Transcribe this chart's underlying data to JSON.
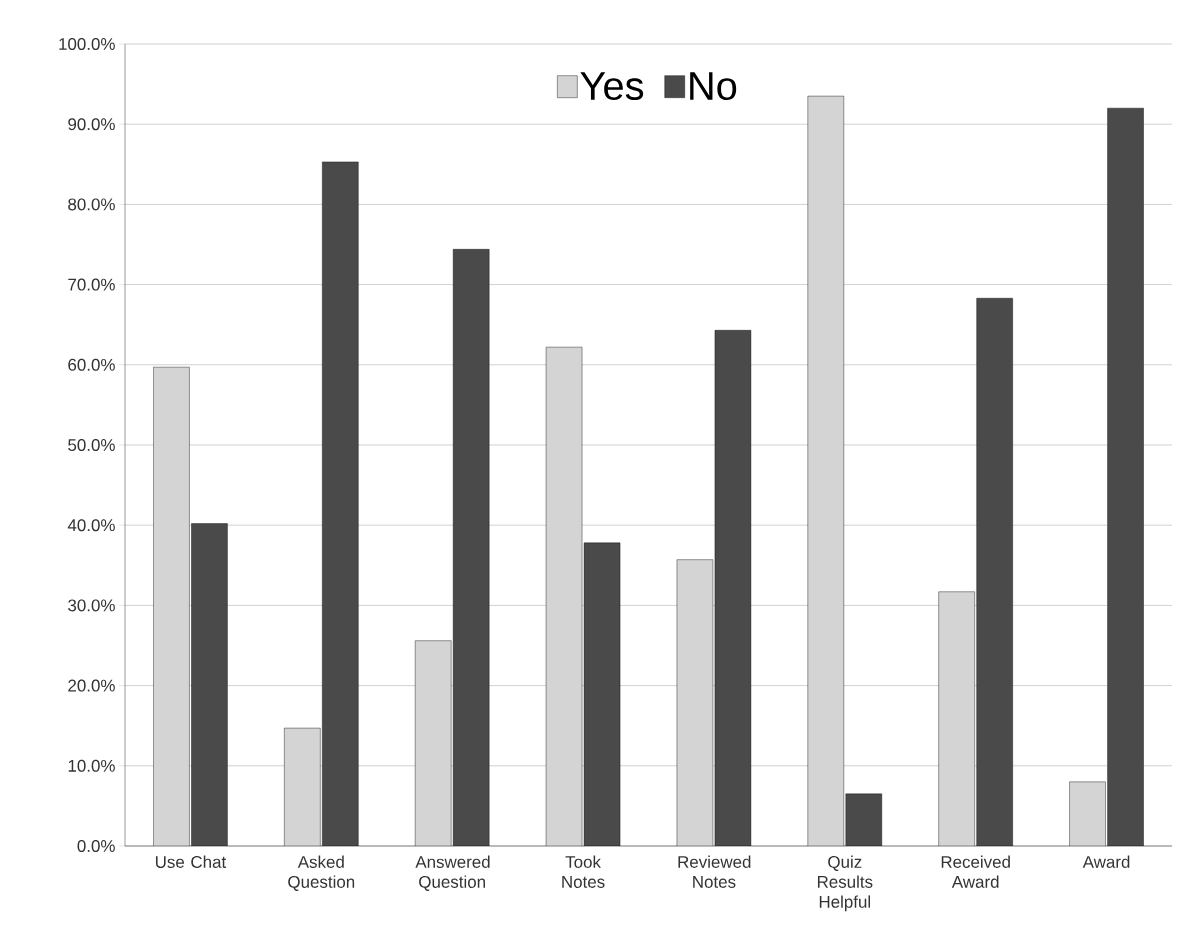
{
  "chart_data": {
    "type": "bar",
    "categories": [
      "Use Chat",
      "Asked Question",
      "Answered Question",
      "Took Notes",
      "Reviewed Notes",
      "Quiz Results Helpful",
      "Received Award",
      "Award"
    ],
    "series": [
      {
        "name": "Yes",
        "color": "#d4d4d4",
        "values": [
          59.7,
          14.7,
          25.6,
          62.2,
          35.7,
          93.5,
          31.7,
          8.0
        ]
      },
      {
        "name": "No",
        "color": "#4a4a4a",
        "values": [
          40.2,
          85.3,
          74.4,
          37.8,
          64.3,
          6.5,
          68.3,
          92.0
        ]
      }
    ],
    "ylim": [
      0,
      100
    ],
    "yticks": [
      {
        "value": 0,
        "label": "0.0%"
      },
      {
        "value": 10,
        "label": "10.0%"
      },
      {
        "value": 20,
        "label": "20.0%"
      },
      {
        "value": 30,
        "label": "30.0%"
      },
      {
        "value": 40,
        "label": "40.0%"
      },
      {
        "value": 50,
        "label": "50.0%"
      },
      {
        "value": 60,
        "label": "60.0%"
      },
      {
        "value": 70,
        "label": "70.0%"
      },
      {
        "value": 80,
        "label": "80.0%"
      },
      {
        "value": 90,
        "label": "90.0%"
      },
      {
        "value": 100,
        "label": "100.0%"
      }
    ],
    "grid": "y",
    "legend": "top"
  }
}
